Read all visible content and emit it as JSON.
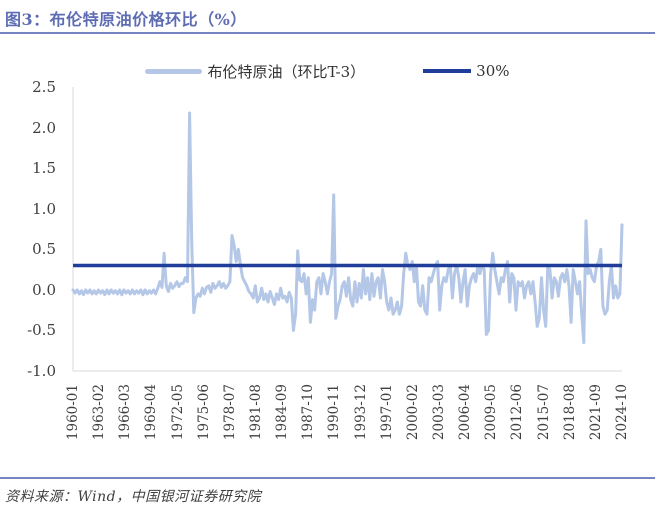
{
  "header": {
    "figure_label": "图3"
  },
  "colors": {
    "series_blue": "#B4C7E7",
    "threshold_navy": "#1F3D99",
    "title_blue": "#5E6DB3",
    "rule_blue": "#7584C0",
    "axis_text": "#404040",
    "axis_line_gray": "#D9D9D9"
  },
  "footer": {
    "source": "资料来源：Wind，中国银河证券研究院"
  },
  "chart_data": {
    "type": "line",
    "title": "图3：布伦特原油价格环比（%）",
    "x_range": {
      "start": "1960-01",
      "end": "2024-10"
    },
    "sampling": "quarterly",
    "xlabel": "",
    "ylabel": "",
    "ylim": [
      -1.0,
      2.5
    ],
    "y_ticks": [
      "2.5",
      "2.0",
      "1.5",
      "1.0",
      "0.5",
      "0.0",
      "-0.5",
      "-1.0"
    ],
    "x_tick_labels": [
      "1960-01",
      "1963-02",
      "1966-03",
      "1969-04",
      "1972-05",
      "1975-06",
      "1978-07",
      "1981-08",
      "1984-09",
      "1987-10",
      "1990-11",
      "1993-12",
      "1997-01",
      "2000-02",
      "2003-03",
      "2006-04",
      "2009-05",
      "2012-06",
      "2015-07",
      "2018-08",
      "2021-09",
      "2024-10"
    ],
    "grid": false,
    "legend_position": "top",
    "series": [
      {
        "name": "布伦特原油（环比T-3）",
        "color": "#B4C7E7",
        "values": [
          0,
          -0.04,
          0,
          -0.05,
          -0.01,
          -0.06,
          0,
          -0.04,
          0,
          -0.05,
          -0.01,
          -0.05,
          0,
          -0.04,
          -0.01,
          -0.06,
          0,
          -0.05,
          0,
          -0.04,
          -0.01,
          -0.05,
          0,
          -0.06,
          0,
          -0.04,
          -0.01,
          -0.05,
          0,
          -0.05,
          -0.01,
          -0.04,
          0,
          -0.06,
          0,
          -0.05,
          -0.01,
          -0.04,
          0,
          -0.05,
          0.02,
          0.1,
          0.03,
          0.45,
          0.05,
          -0.02,
          0.08,
          0.02,
          0.05,
          0.1,
          0.04,
          0.08,
          0.08,
          0.15,
          0.1,
          2.18,
          0.6,
          -0.28,
          -0.1,
          -0.05,
          -0.08,
          0.02,
          -0.05,
          0.03,
          0.05,
          -0.03,
          0.08,
          0.02,
          0.05,
          0.1,
          0.03,
          0.08,
          0.02,
          0.05,
          0.1,
          0.67,
          0.55,
          0.35,
          0.5,
          0.3,
          0.15,
          0.1,
          0.05,
          -0.02,
          -0.05,
          -0.1,
          0.05,
          -0.15,
          -0.1,
          0.02,
          -0.12,
          -0.05,
          -0.15,
          -0.02,
          -0.1,
          -0.18,
          -0.05,
          -0.12,
          0.02,
          -0.1,
          -0.08,
          -0.15,
          -0.03,
          -0.1,
          -0.5,
          -0.3,
          0.48,
          0.12,
          0.1,
          0.2,
          -0.05,
          0.15,
          -0.4,
          -0.12,
          -0.25,
          0.1,
          0.15,
          -0.05,
          0.2,
          0.1,
          -0.05,
          0.1,
          0.2,
          1.17,
          -0.35,
          -0.2,
          -0.12,
          0.05,
          0.1,
          -0.08,
          0.15,
          -0.12,
          -0.2,
          0.1,
          -0.15,
          0.08,
          -0.1,
          0.25,
          -0.05,
          0.15,
          -0.12,
          0.2,
          -0.08,
          0.1,
          0.15,
          -0.1,
          0.25,
          0.1,
          -0.15,
          -0.25,
          -0.1,
          -0.3,
          -0.25,
          -0.15,
          -0.3,
          -0.2,
          0.2,
          0.45,
          0.3,
          0.25,
          0.35,
          0.1,
          0.3,
          -0.15,
          -0.2,
          0.05,
          -0.25,
          -0.3,
          0.15,
          0.1,
          0.2,
          0.3,
          0.35,
          -0.25,
          0.05,
          0.15,
          0.1,
          0.25,
          0.3,
          -0.1,
          0.2,
          0.3,
          0.15,
          -0.15,
          0.1,
          0.25,
          -0.2,
          0.05,
          0.15,
          0.2,
          0.1,
          0.3,
          0.2,
          0.3,
          0.25,
          -0.55,
          -0.5,
          0.2,
          0.45,
          0.25,
          0.1,
          -0.05,
          0.15,
          0.1,
          0.25,
          0.35,
          -0.15,
          0.2,
          0.15,
          -0.25,
          0.1,
          0.05,
          0.1,
          -0.1,
          0.05,
          0.1,
          -0.05,
          0.1,
          -0.15,
          -0.45,
          -0.35,
          0.15,
          -0.25,
          -0.45,
          0.3,
          0.25,
          -0.1,
          0.15,
          0.1,
          -0.08,
          0.15,
          0.2,
          0.1,
          0.25,
          0.05,
          -0.4,
          0.25,
          0.1,
          -0.05,
          0.1,
          -0.3,
          -0.65,
          0.85,
          0.2,
          0.25,
          0.15,
          0.1,
          0.3,
          0.35,
          0.5,
          -0.2,
          -0.3,
          -0.25,
          0.1,
          0.3,
          -0.1,
          0.05,
          -0.1,
          -0.05,
          0.8
        ]
      }
    ],
    "ref_line": {
      "name": "30%",
      "value": 0.3,
      "color": "#1F3D99"
    }
  }
}
